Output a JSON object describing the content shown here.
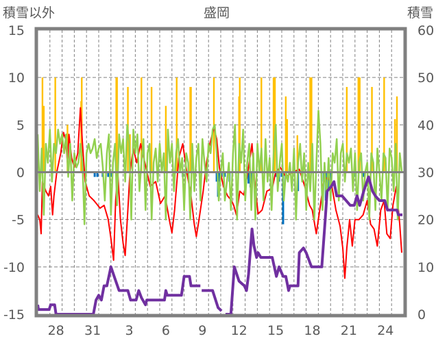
{
  "chart_data": {
    "type": "line",
    "title": "盛岡",
    "ylabel_left": "積雪以外",
    "ylabel_right": "積雪",
    "xlim": [
      0,
      30
    ],
    "ylim_left": [
      -15,
      15
    ],
    "ylim_right": [
      0,
      60
    ],
    "yticks_left": [
      "15",
      "10",
      "5",
      "0",
      "-5",
      "-10",
      "-15"
    ],
    "yticks_left_values": [
      15,
      10,
      5,
      0,
      -5,
      -10,
      -15
    ],
    "yticks_right": [
      "60",
      "50",
      "40",
      "30",
      "20",
      "10",
      "0"
    ],
    "yticks_right_values": [
      60,
      50,
      40,
      30,
      20,
      10,
      0
    ],
    "xticks": [
      {
        "label": "28",
        "x": 1.5
      },
      {
        "label": "31",
        "x": 4.5
      },
      {
        "label": "3",
        "x": 7.5
      },
      {
        "label": "6",
        "x": 10.5
      },
      {
        "label": "9",
        "x": 13.5
      },
      {
        "label": "12",
        "x": 16.5
      },
      {
        "label": "15",
        "x": 19.5
      },
      {
        "label": "18",
        "x": 22.5
      },
      {
        "label": "21",
        "x": 25.5
      },
      {
        "label": "24",
        "x": 28.5
      }
    ],
    "grid": true,
    "colors": {
      "orange": "#FFC000",
      "blue": "#0070C0",
      "red": "#FF0000",
      "green": "#92D050",
      "purple": "#7030A0",
      "frame": "#808080"
    },
    "orange_bars": [
      [
        0.39,
        10
      ],
      [
        0.5,
        7
      ],
      [
        1.44,
        10
      ],
      [
        2.44,
        5
      ],
      [
        3.56,
        7.5
      ],
      [
        3.61,
        10
      ],
      [
        6.44,
        10
      ],
      [
        6.5,
        10
      ],
      [
        7.39,
        9
      ],
      [
        7.56,
        4
      ],
      [
        8.5,
        10
      ],
      [
        9.33,
        9
      ],
      [
        10.5,
        7
      ],
      [
        11.39,
        10
      ],
      [
        12.5,
        9
      ],
      [
        12.56,
        9
      ],
      [
        14.44,
        10
      ],
      [
        16.5,
        8
      ],
      [
        16.56,
        10
      ],
      [
        18.33,
        10
      ],
      [
        19.33,
        10
      ],
      [
        19.39,
        10
      ],
      [
        19.44,
        10
      ],
      [
        20.33,
        8
      ],
      [
        20.44,
        5.6
      ],
      [
        21.28,
        3.9
      ],
      [
        22.33,
        10
      ],
      [
        22.39,
        10
      ],
      [
        22.44,
        10
      ],
      [
        25.33,
        9
      ],
      [
        26.28,
        10
      ],
      [
        26.33,
        10
      ],
      [
        26.39,
        10
      ],
      [
        27.39,
        9
      ],
      [
        28.39,
        10
      ],
      [
        29.28,
        5.6
      ],
      [
        29.44,
        8
      ]
    ],
    "blue_bars": [
      [
        4.67,
        -0.5
      ],
      [
        4.89,
        -0.5
      ],
      [
        5.33,
        -0.5
      ],
      [
        5.78,
        -0.5
      ],
      [
        6.0,
        -0.5
      ],
      [
        11.89,
        -0.5
      ],
      [
        14.67,
        -1
      ],
      [
        14.78,
        -2.6
      ],
      [
        14.89,
        -1
      ],
      [
        15.06,
        -0.5
      ],
      [
        15.33,
        -0.5
      ],
      [
        15.72,
        -1
      ],
      [
        17.28,
        -1.2
      ],
      [
        17.44,
        -1.6
      ],
      [
        17.61,
        -0.8
      ],
      [
        19.56,
        -0.5
      ],
      [
        19.78,
        -1
      ],
      [
        20.0,
        -0.5
      ],
      [
        20.11,
        -5.5
      ],
      [
        21.33,
        -2
      ],
      [
        23.44,
        -1
      ],
      [
        23.61,
        -3
      ],
      [
        23.78,
        -2
      ],
      [
        24.0,
        -1
      ],
      [
        26.06,
        -0.5
      ],
      [
        26.72,
        -0.5
      ]
    ],
    "green": {
      "start": 0,
      "step": 0.1667,
      "values": [
        4,
        -2,
        2.5,
        -4.5,
        3,
        1,
        4.5,
        -1,
        3,
        2,
        4.5,
        3,
        4,
        2,
        4,
        -0.5,
        3,
        -3,
        2,
        0.5,
        1,
        3,
        1,
        -5.5,
        2,
        3,
        2,
        2.5,
        3.5,
        1.5,
        2.5,
        3,
        0.5,
        -3,
        2,
        4,
        -4.5,
        1,
        3,
        -3.5,
        4,
        2,
        3.5,
        -1,
        5,
        3,
        -5,
        4.5,
        2,
        4,
        -2,
        1,
        3.5,
        -4,
        2,
        3,
        -5,
        1,
        2.5,
        -1,
        3,
        0,
        2,
        -5,
        4.5,
        1,
        3,
        -2,
        2,
        3.5,
        0,
        1.5,
        -4,
        2,
        1,
        -5,
        3,
        -2,
        1.5,
        3,
        -3,
        3.5,
        1,
        -1,
        3,
        2,
        4.5,
        5,
        2,
        -3,
        0,
        2,
        -3,
        -1,
        1,
        -4,
        2,
        5,
        -5,
        3,
        1,
        4.5,
        -3,
        1,
        3,
        -4,
        2,
        -5,
        3,
        0,
        2.5,
        -3,
        3.5,
        -1,
        1.5,
        -4,
        2,
        5,
        -2,
        1,
        3,
        -3,
        0,
        -1,
        1,
        -2,
        2.5,
        -5,
        1,
        3,
        -1,
        2,
        -4,
        1,
        -2,
        3,
        -5,
        1,
        6.5,
        3,
        -4,
        1,
        -3,
        1.5,
        -3,
        2,
        1,
        3.5,
        -3,
        2,
        3,
        -1,
        2,
        1,
        2.5,
        -2,
        2,
        -4,
        1,
        2,
        -3,
        0,
        1,
        -5,
        2,
        1,
        -4,
        2.5,
        0,
        -3,
        2,
        1.5,
        -4,
        2.5,
        1.5,
        -2,
        3,
        -5,
        2,
        0
      ]
    },
    "red": [
      [
        0,
        -4.5
      ],
      [
        0.17,
        -5
      ],
      [
        0.28,
        -6.5
      ],
      [
        0.39,
        -1
      ],
      [
        0.67,
        -2
      ],
      [
        0.89,
        -2.5
      ],
      [
        1.06,
        -1.5
      ],
      [
        1.22,
        -4.5
      ],
      [
        1.33,
        -2.5
      ],
      [
        1.56,
        0
      ],
      [
        1.89,
        2
      ],
      [
        2.11,
        4.2
      ],
      [
        2.28,
        3.5
      ],
      [
        2.44,
        1
      ],
      [
        2.56,
        4
      ],
      [
        2.78,
        1.5
      ],
      [
        3.0,
        0.5
      ],
      [
        3.28,
        2
      ],
      [
        3.5,
        6.8
      ],
      [
        3.67,
        3
      ],
      [
        3.89,
        -1
      ],
      [
        4.22,
        -2.5
      ],
      [
        4.61,
        -3
      ],
      [
        5.11,
        -3.8
      ],
      [
        5.44,
        -3.5
      ],
      [
        5.78,
        -5
      ],
      [
        6.0,
        -7
      ],
      [
        6.22,
        -9.3
      ],
      [
        6.39,
        -3
      ],
      [
        6.56,
        0
      ],
      [
        6.78,
        -5
      ],
      [
        7.0,
        -7.5
      ],
      [
        7.17,
        -8.8
      ],
      [
        7.39,
        -4
      ],
      [
        7.56,
        0
      ],
      [
        7.83,
        2.5
      ],
      [
        8.11,
        1
      ],
      [
        8.44,
        3
      ],
      [
        8.78,
        1
      ],
      [
        9.22,
        -1.5
      ],
      [
        9.67,
        -1
      ],
      [
        10.06,
        -3.3
      ],
      [
        10.44,
        -2.5
      ],
      [
        10.78,
        -5
      ],
      [
        11.0,
        -6.4
      ],
      [
        11.22,
        -4
      ],
      [
        11.56,
        1.5
      ],
      [
        11.89,
        3
      ],
      [
        12.22,
        0
      ],
      [
        12.56,
        -2.5
      ],
      [
        12.83,
        -5.5
      ],
      [
        13.0,
        -6.8
      ],
      [
        13.22,
        -5
      ],
      [
        13.56,
        -2
      ],
      [
        13.83,
        1
      ],
      [
        14.11,
        3
      ],
      [
        14.44,
        4.7
      ],
      [
        14.67,
        3.5
      ],
      [
        14.89,
        0.5
      ],
      [
        15.22,
        -1.5
      ],
      [
        15.56,
        -2.5
      ],
      [
        15.89,
        -3
      ],
      [
        16.06,
        -3.5
      ],
      [
        16.28,
        -4.5
      ],
      [
        16.56,
        -2
      ],
      [
        16.89,
        -2.4
      ],
      [
        17.22,
        0
      ],
      [
        17.56,
        3
      ],
      [
        17.78,
        -1
      ],
      [
        18.06,
        -4.4
      ],
      [
        18.39,
        -4
      ],
      [
        18.78,
        -2
      ],
      [
        19.22,
        -1.7
      ],
      [
        19.5,
        0
      ],
      [
        19.89,
        0.5
      ],
      [
        20.33,
        -0.5
      ],
      [
        20.89,
        0
      ],
      [
        21.44,
        0.3
      ],
      [
        21.89,
        -1.5
      ],
      [
        22.28,
        -3.5
      ],
      [
        22.5,
        -4
      ],
      [
        22.83,
        -6.5
      ],
      [
        23.11,
        -4
      ],
      [
        23.44,
        -1
      ],
      [
        23.78,
        -0.5
      ],
      [
        24.11,
        -1.5
      ],
      [
        24.44,
        -4
      ],
      [
        24.78,
        -5.7
      ],
      [
        25.0,
        -8
      ],
      [
        25.17,
        -11.2
      ],
      [
        25.33,
        -8
      ],
      [
        25.56,
        -5
      ],
      [
        25.78,
        -7.8
      ],
      [
        26.0,
        -5
      ],
      [
        26.33,
        -5
      ],
      [
        26.67,
        -4.5
      ],
      [
        27.0,
        -3
      ],
      [
        27.28,
        -5.5
      ],
      [
        27.56,
        -6
      ],
      [
        27.83,
        -7.8
      ],
      [
        28.11,
        -4
      ],
      [
        28.39,
        -3
      ],
      [
        28.61,
        -6.5
      ],
      [
        28.89,
        -7
      ],
      [
        29.11,
        -3.5
      ],
      [
        29.39,
        -1.5
      ],
      [
        29.67,
        -5.5
      ],
      [
        29.83,
        -8.5
      ]
    ],
    "snow_depth": [
      [
        0,
        2
      ],
      [
        0.06,
        1
      ],
      [
        0.94,
        1
      ],
      [
        1.06,
        2
      ],
      [
        1.39,
        2
      ],
      [
        1.5,
        0
      ],
      [
        4.56,
        0
      ],
      [
        4.78,
        3
      ],
      [
        5.0,
        4
      ],
      [
        5.22,
        3
      ],
      [
        5.44,
        6
      ],
      [
        5.67,
        6
      ],
      [
        6.0,
        10
      ],
      [
        6.33,
        7.5
      ],
      [
        6.67,
        5
      ],
      [
        7.39,
        5
      ],
      [
        7.61,
        3
      ],
      [
        8.06,
        3
      ],
      [
        8.28,
        5
      ],
      [
        8.5,
        3.5
      ],
      [
        8.83,
        2
      ],
      [
        8.94,
        3
      ],
      [
        10.39,
        3
      ],
      [
        10.5,
        5
      ],
      [
        10.61,
        4
      ],
      [
        11.78,
        4
      ],
      [
        12.0,
        8
      ],
      [
        12.44,
        8
      ],
      [
        12.56,
        6
      ],
      [
        13.33,
        6
      ],
      null,
      [
        13.44,
        5
      ],
      [
        14.33,
        5
      ],
      [
        14.78,
        1.4
      ],
      [
        15.06,
        0.7
      ],
      null,
      [
        15.39,
        0
      ],
      [
        15.83,
        0
      ],
      [
        16.11,
        10
      ],
      [
        16.5,
        7
      ],
      [
        16.94,
        6
      ],
      [
        17.11,
        5
      ],
      [
        17.28,
        8.5
      ],
      [
        17.56,
        18
      ],
      [
        17.72,
        14.5
      ],
      [
        17.94,
        12
      ],
      [
        18.06,
        13
      ],
      [
        18.28,
        12
      ],
      [
        19.22,
        12
      ],
      [
        19.56,
        8
      ],
      [
        19.78,
        10
      ],
      [
        20.11,
        8
      ],
      [
        20.33,
        8
      ],
      [
        20.56,
        5
      ],
      [
        20.67,
        6
      ],
      [
        21.33,
        6
      ],
      [
        21.44,
        13
      ],
      [
        21.78,
        14
      ],
      [
        22.0,
        13
      ],
      [
        22.44,
        10
      ],
      [
        23.28,
        10
      ],
      [
        23.56,
        20
      ],
      [
        23.72,
        26
      ],
      [
        24.06,
        27
      ],
      [
        24.28,
        28
      ],
      [
        24.5,
        25
      ],
      [
        24.94,
        25
      ],
      [
        25.61,
        23
      ],
      [
        25.94,
        23
      ],
      [
        26.17,
        25
      ],
      [
        26.39,
        23
      ],
      [
        26.72,
        26
      ],
      [
        27.11,
        29
      ],
      [
        27.44,
        26
      ],
      [
        27.67,
        25
      ],
      [
        28.0,
        24
      ],
      [
        28.44,
        24
      ],
      [
        28.67,
        22
      ],
      [
        29.44,
        22
      ],
      [
        29.56,
        21
      ],
      [
        29.89,
        21
      ]
    ]
  }
}
